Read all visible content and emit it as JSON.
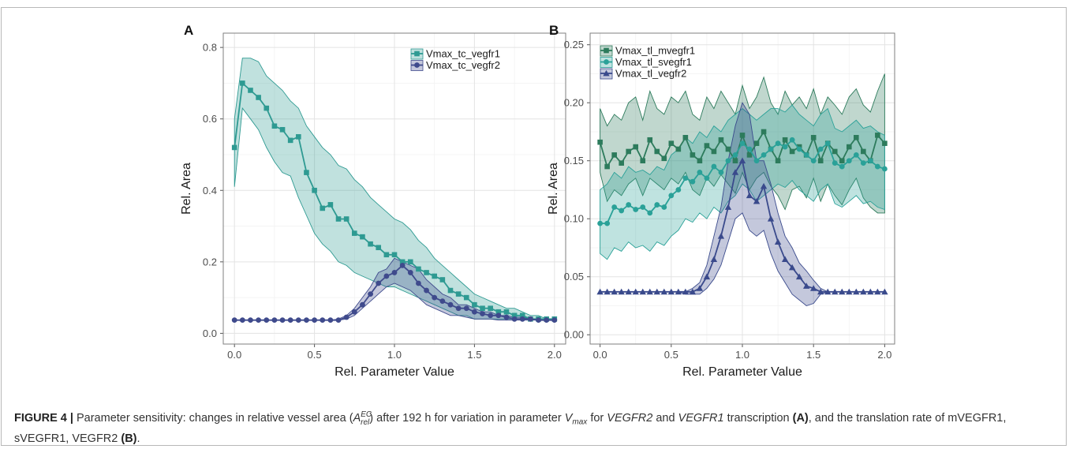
{
  "caption": {
    "label": "FIGURE 4 |",
    "part1": " Parameter sensitivity: changes in relative vessel area (",
    "a_sym": "A",
    "a_sup": "EC",
    "a_sub": "rel",
    "part2": ") after 192 h for variation in parameter ",
    "vmax_sym": "V",
    "vmax_sub": "max",
    "part3": " for ",
    "gene1": "VEGFR2",
    "part4": " and ",
    "gene2": "VEGFR1",
    "part5": " transcription ",
    "panel_a_ref": "(A)",
    "part6": ", and the translation rate of mVEGFR1, sVEGFR1, VEGFR2 ",
    "panel_b_ref": "(B)",
    "part7": "."
  },
  "chart_data": [
    {
      "panel": "A",
      "type": "line",
      "xlabel": "Rel. Parameter Value",
      "ylabel": "Rel. Area",
      "xlim": [
        -0.07,
        2.07
      ],
      "ylim": [
        -0.03,
        0.84
      ],
      "xticks": [
        0.0,
        0.5,
        1.0,
        1.5,
        2.0
      ],
      "xtick_labels": [
        "0.0",
        "0.5",
        "1.0",
        "1.5",
        "2.0"
      ],
      "yticks": [
        0.0,
        0.2,
        0.4,
        0.6,
        0.8
      ],
      "ytick_labels": [
        "0.0",
        "0.2",
        "0.4",
        "0.6",
        "0.8"
      ],
      "grid": true,
      "legend": "top-right",
      "series": [
        {
          "name": "Vmax_tc_vegfr1",
          "color": "#2e9a92",
          "marker": "square",
          "x": [
            0.0,
            0.05,
            0.1,
            0.15,
            0.2,
            0.25,
            0.3,
            0.35,
            0.4,
            0.45,
            0.5,
            0.55,
            0.6,
            0.65,
            0.7,
            0.75,
            0.8,
            0.85,
            0.9,
            0.95,
            1.0,
            1.05,
            1.1,
            1.15,
            1.2,
            1.25,
            1.3,
            1.35,
            1.4,
            1.45,
            1.5,
            1.55,
            1.6,
            1.65,
            1.7,
            1.75,
            1.8,
            1.85,
            1.9,
            1.95,
            2.0
          ],
          "y": [
            0.52,
            0.7,
            0.68,
            0.66,
            0.63,
            0.58,
            0.57,
            0.54,
            0.55,
            0.45,
            0.4,
            0.35,
            0.36,
            0.32,
            0.32,
            0.28,
            0.27,
            0.25,
            0.24,
            0.22,
            0.22,
            0.2,
            0.2,
            0.18,
            0.17,
            0.16,
            0.15,
            0.12,
            0.11,
            0.1,
            0.08,
            0.07,
            0.07,
            0.06,
            0.06,
            0.05,
            0.05,
            0.04,
            0.04,
            0.04,
            0.04
          ],
          "upper": [
            0.6,
            0.77,
            0.77,
            0.76,
            0.72,
            0.7,
            0.68,
            0.65,
            0.63,
            0.58,
            0.55,
            0.52,
            0.5,
            0.47,
            0.46,
            0.43,
            0.41,
            0.38,
            0.36,
            0.34,
            0.32,
            0.31,
            0.29,
            0.26,
            0.24,
            0.21,
            0.19,
            0.17,
            0.15,
            0.13,
            0.11,
            0.1,
            0.09,
            0.08,
            0.07,
            0.07,
            0.06,
            0.05,
            0.05,
            0.04,
            0.04
          ],
          "lower": [
            0.41,
            0.63,
            0.6,
            0.57,
            0.52,
            0.48,
            0.45,
            0.44,
            0.38,
            0.33,
            0.28,
            0.25,
            0.23,
            0.2,
            0.19,
            0.17,
            0.16,
            0.15,
            0.14,
            0.13,
            0.13,
            0.12,
            0.11,
            0.1,
            0.09,
            0.08,
            0.07,
            0.06,
            0.05,
            0.05,
            0.04,
            0.04,
            0.04,
            0.04,
            0.04,
            0.04,
            0.04,
            0.04,
            0.04,
            0.04,
            0.04
          ]
        },
        {
          "name": "Vmax_tc_vegfr2",
          "color": "#3f4a8c",
          "marker": "circle",
          "x": [
            0.0,
            0.05,
            0.1,
            0.15,
            0.2,
            0.25,
            0.3,
            0.35,
            0.4,
            0.45,
            0.5,
            0.55,
            0.6,
            0.65,
            0.7,
            0.75,
            0.8,
            0.85,
            0.9,
            0.95,
            1.0,
            1.05,
            1.1,
            1.15,
            1.2,
            1.25,
            1.3,
            1.35,
            1.4,
            1.45,
            1.5,
            1.55,
            1.6,
            1.65,
            1.7,
            1.75,
            1.8,
            1.85,
            1.9,
            1.95,
            2.0
          ],
          "y": [
            0.037,
            0.037,
            0.037,
            0.037,
            0.037,
            0.037,
            0.037,
            0.037,
            0.037,
            0.037,
            0.037,
            0.037,
            0.037,
            0.037,
            0.045,
            0.06,
            0.08,
            0.11,
            0.14,
            0.16,
            0.17,
            0.19,
            0.17,
            0.14,
            0.12,
            0.1,
            0.09,
            0.08,
            0.07,
            0.07,
            0.06,
            0.055,
            0.05,
            0.05,
            0.045,
            0.04,
            0.04,
            0.04,
            0.037,
            0.037,
            0.037
          ],
          "upper": [
            0.037,
            0.037,
            0.037,
            0.037,
            0.037,
            0.037,
            0.037,
            0.037,
            0.037,
            0.037,
            0.037,
            0.037,
            0.037,
            0.04,
            0.05,
            0.07,
            0.1,
            0.13,
            0.17,
            0.18,
            0.21,
            0.2,
            0.19,
            0.18,
            0.15,
            0.13,
            0.11,
            0.1,
            0.08,
            0.08,
            0.07,
            0.06,
            0.06,
            0.05,
            0.05,
            0.045,
            0.045,
            0.04,
            0.04,
            0.04,
            0.037
          ],
          "lower": [
            0.037,
            0.037,
            0.037,
            0.037,
            0.037,
            0.037,
            0.037,
            0.037,
            0.037,
            0.037,
            0.037,
            0.037,
            0.037,
            0.037,
            0.04,
            0.05,
            0.07,
            0.09,
            0.11,
            0.13,
            0.14,
            0.13,
            0.12,
            0.1,
            0.08,
            0.07,
            0.06,
            0.05,
            0.05,
            0.045,
            0.04,
            0.04,
            0.04,
            0.037,
            0.037,
            0.037,
            0.037,
            0.037,
            0.037,
            0.037,
            0.037
          ]
        }
      ]
    },
    {
      "panel": "B",
      "type": "line",
      "xlabel": "Rel. Parameter Value",
      "ylabel": "Rel. Area",
      "xlim": [
        -0.07,
        2.07
      ],
      "ylim": [
        -0.008,
        0.26
      ],
      "xticks": [
        0.0,
        0.5,
        1.0,
        1.5,
        2.0
      ],
      "xtick_labels": [
        "0.0",
        "0.5",
        "1.0",
        "1.5",
        "2.0"
      ],
      "yticks": [
        0.0,
        0.05,
        0.1,
        0.15,
        0.2,
        0.25
      ],
      "ytick_labels": [
        "0.00",
        "0.05",
        "0.10",
        "0.15",
        "0.20",
        "0.25"
      ],
      "grid": true,
      "legend": "top-left",
      "series": [
        {
          "name": "Vmax_tl_mvegfr1",
          "color": "#2d7b5c",
          "marker": "square",
          "x": [
            0.0,
            0.05,
            0.1,
            0.15,
            0.2,
            0.25,
            0.3,
            0.35,
            0.4,
            0.45,
            0.5,
            0.55,
            0.6,
            0.65,
            0.7,
            0.75,
            0.8,
            0.85,
            0.9,
            0.95,
            1.0,
            1.05,
            1.1,
            1.15,
            1.2,
            1.25,
            1.3,
            1.35,
            1.4,
            1.45,
            1.5,
            1.55,
            1.6,
            1.65,
            1.7,
            1.75,
            1.8,
            1.85,
            1.9,
            1.95,
            2.0
          ],
          "y": [
            0.166,
            0.145,
            0.155,
            0.148,
            0.158,
            0.162,
            0.15,
            0.168,
            0.158,
            0.152,
            0.165,
            0.16,
            0.17,
            0.155,
            0.15,
            0.163,
            0.158,
            0.168,
            0.16,
            0.15,
            0.172,
            0.155,
            0.165,
            0.175,
            0.16,
            0.15,
            0.168,
            0.158,
            0.162,
            0.155,
            0.17,
            0.15,
            0.165,
            0.158,
            0.15,
            0.162,
            0.17,
            0.158,
            0.15,
            0.172,
            0.165
          ],
          "upper": [
            0.195,
            0.18,
            0.19,
            0.185,
            0.2,
            0.205,
            0.185,
            0.21,
            0.195,
            0.19,
            0.205,
            0.2,
            0.21,
            0.19,
            0.185,
            0.205,
            0.195,
            0.21,
            0.2,
            0.19,
            0.215,
            0.195,
            0.205,
            0.222,
            0.2,
            0.19,
            0.21,
            0.198,
            0.205,
            0.195,
            0.212,
            0.19,
            0.205,
            0.198,
            0.19,
            0.205,
            0.212,
            0.198,
            0.192,
            0.21,
            0.225
          ],
          "lower": [
            0.14,
            0.115,
            0.125,
            0.12,
            0.13,
            0.135,
            0.12,
            0.135,
            0.13,
            0.125,
            0.135,
            0.13,
            0.14,
            0.125,
            0.12,
            0.135,
            0.128,
            0.138,
            0.13,
            0.122,
            0.14,
            0.125,
            0.135,
            0.14,
            0.128,
            0.12,
            0.108,
            0.125,
            0.128,
            0.118,
            0.135,
            0.115,
            0.13,
            0.12,
            0.112,
            0.125,
            0.135,
            0.118,
            0.11,
            0.105,
            0.105
          ]
        },
        {
          "name": "Vmax_tl_svegfr1",
          "color": "#2aa198",
          "marker": "circle",
          "x": [
            0.0,
            0.05,
            0.1,
            0.15,
            0.2,
            0.25,
            0.3,
            0.35,
            0.4,
            0.45,
            0.5,
            0.55,
            0.6,
            0.65,
            0.7,
            0.75,
            0.8,
            0.85,
            0.9,
            0.95,
            1.0,
            1.05,
            1.1,
            1.15,
            1.2,
            1.25,
            1.3,
            1.35,
            1.4,
            1.45,
            1.5,
            1.55,
            1.6,
            1.65,
            1.7,
            1.75,
            1.8,
            1.85,
            1.9,
            1.95,
            2.0
          ],
          "y": [
            0.096,
            0.096,
            0.11,
            0.107,
            0.112,
            0.108,
            0.11,
            0.105,
            0.112,
            0.11,
            0.12,
            0.125,
            0.135,
            0.132,
            0.14,
            0.135,
            0.145,
            0.14,
            0.15,
            0.155,
            0.165,
            0.16,
            0.15,
            0.155,
            0.16,
            0.165,
            0.162,
            0.168,
            0.16,
            0.155,
            0.15,
            0.16,
            0.165,
            0.148,
            0.145,
            0.15,
            0.155,
            0.148,
            0.15,
            0.145,
            0.143
          ],
          "upper": [
            0.125,
            0.13,
            0.14,
            0.135,
            0.145,
            0.14,
            0.142,
            0.138,
            0.145,
            0.142,
            0.155,
            0.16,
            0.17,
            0.165,
            0.175,
            0.17,
            0.18,
            0.175,
            0.185,
            0.19,
            0.195,
            0.19,
            0.185,
            0.19,
            0.195,
            0.195,
            0.192,
            0.198,
            0.19,
            0.185,
            0.18,
            0.19,
            0.195,
            0.178,
            0.175,
            0.18,
            0.185,
            0.178,
            0.18,
            0.175,
            0.172
          ],
          "lower": [
            0.07,
            0.065,
            0.075,
            0.072,
            0.08,
            0.075,
            0.077,
            0.072,
            0.08,
            0.077,
            0.085,
            0.09,
            0.1,
            0.097,
            0.105,
            0.1,
            0.11,
            0.105,
            0.115,
            0.12,
            0.13,
            0.125,
            0.115,
            0.12,
            0.125,
            0.13,
            0.127,
            0.133,
            0.125,
            0.12,
            0.115,
            0.125,
            0.13,
            0.113,
            0.11,
            0.115,
            0.12,
            0.113,
            0.115,
            0.11,
            0.108
          ]
        },
        {
          "name": "Vmax_tl_vegfr2",
          "color": "#3a4a8c",
          "marker": "triangle",
          "x": [
            0.0,
            0.05,
            0.1,
            0.15,
            0.2,
            0.25,
            0.3,
            0.35,
            0.4,
            0.45,
            0.5,
            0.55,
            0.6,
            0.65,
            0.7,
            0.75,
            0.8,
            0.85,
            0.9,
            0.95,
            1.0,
            1.05,
            1.1,
            1.15,
            1.2,
            1.25,
            1.3,
            1.35,
            1.4,
            1.45,
            1.5,
            1.55,
            1.6,
            1.65,
            1.7,
            1.75,
            1.8,
            1.85,
            1.9,
            1.95,
            2.0
          ],
          "y": [
            0.037,
            0.037,
            0.037,
            0.037,
            0.037,
            0.037,
            0.037,
            0.037,
            0.037,
            0.037,
            0.037,
            0.037,
            0.037,
            0.037,
            0.04,
            0.05,
            0.065,
            0.085,
            0.11,
            0.14,
            0.15,
            0.12,
            0.115,
            0.128,
            0.1,
            0.08,
            0.065,
            0.058,
            0.05,
            0.042,
            0.04,
            0.037,
            0.037,
            0.037,
            0.037,
            0.037,
            0.037,
            0.037,
            0.037,
            0.037,
            0.037
          ],
          "upper": [
            0.037,
            0.037,
            0.037,
            0.037,
            0.037,
            0.037,
            0.037,
            0.037,
            0.037,
            0.037,
            0.037,
            0.037,
            0.037,
            0.04,
            0.045,
            0.06,
            0.085,
            0.11,
            0.15,
            0.18,
            0.2,
            0.19,
            0.15,
            0.15,
            0.13,
            0.105,
            0.085,
            0.075,
            0.062,
            0.055,
            0.047,
            0.04,
            0.037,
            0.037,
            0.037,
            0.037,
            0.037,
            0.037,
            0.037,
            0.037,
            0.037
          ],
          "lower": [
            0.037,
            0.037,
            0.037,
            0.037,
            0.037,
            0.037,
            0.037,
            0.037,
            0.037,
            0.037,
            0.037,
            0.037,
            0.035,
            0.035,
            0.035,
            0.04,
            0.048,
            0.06,
            0.08,
            0.1,
            0.105,
            0.09,
            0.085,
            0.09,
            0.07,
            0.055,
            0.045,
            0.035,
            0.03,
            0.025,
            0.027,
            0.035,
            0.037,
            0.037,
            0.037,
            0.037,
            0.037,
            0.037,
            0.037,
            0.037,
            0.037
          ]
        }
      ]
    }
  ]
}
